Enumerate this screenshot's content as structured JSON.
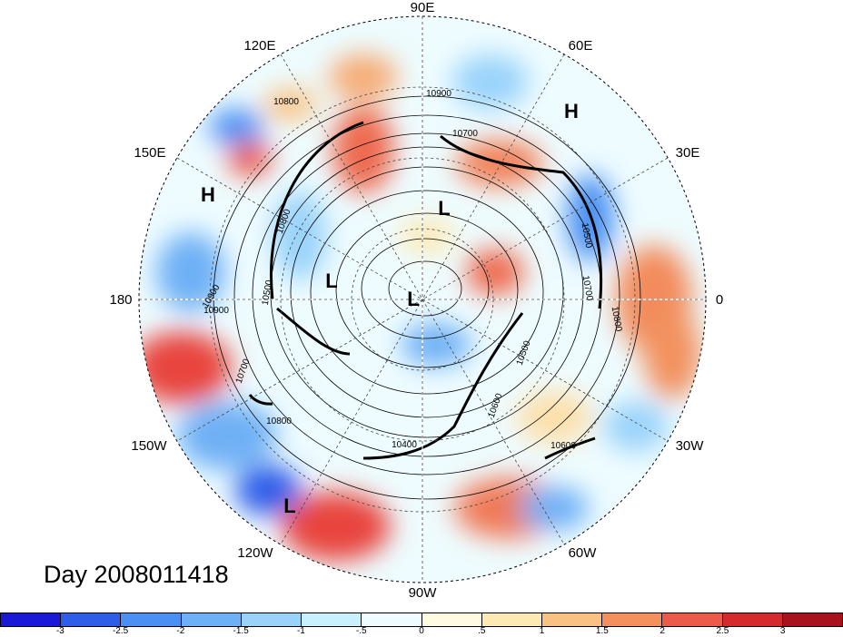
{
  "map": {
    "longitude_labels": [
      "90E",
      "60E",
      "30E",
      "0",
      "30W",
      "60W",
      "90W",
      "120W",
      "150W",
      "180",
      "150E",
      "120E"
    ],
    "pressure_centers": [
      "H",
      "H",
      "L",
      "L",
      "L",
      "L"
    ],
    "contour_labels": [
      "10900",
      "10700",
      "10500",
      "10800",
      "10900",
      "10500",
      "10700",
      "10800",
      "10600",
      "10500",
      "10800",
      "10400",
      "10600",
      "10800",
      "10900",
      "10700"
    ]
  },
  "date_label": "Day 2008011418",
  "colorbar": {
    "colors": [
      "#1a1ad6",
      "#2e5de8",
      "#4a8ff2",
      "#6eb0f5",
      "#9ad3fa",
      "#c8f0fd",
      "#eefcff",
      "#fffbe1",
      "#fde9b4",
      "#f9c283",
      "#f3905e",
      "#ec5a4a",
      "#d42a2e",
      "#a8121d"
    ],
    "tick_labels": [
      "-3",
      "-2.5",
      "-2",
      "-1.5",
      "-1",
      "-.5",
      "0",
      ".5",
      "1",
      "1.5",
      "2",
      "2.5",
      "3"
    ]
  }
}
